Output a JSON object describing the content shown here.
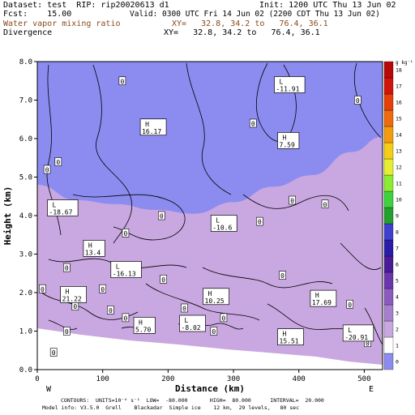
{
  "header": {
    "dataset": "Dataset: test  RIP: rip20020613 d1",
    "init": "Init: 1200 UTC Thu 13 Jun 02",
    "fcst": "Fcst:    15.00",
    "valid": "Valid: 0300 UTC Fri 14 Jun 02 (2200 CDT Thu 13 Jun 02)",
    "field1": "Water vapor mixing ratio",
    "xy1": "XY=   32.8, 34.2 to   76.4, 36.1",
    "field2": "Divergence",
    "xy2": "XY=   32.8, 34.2 to   76.4, 36.1"
  },
  "footer": {
    "line1": "CONTOURS:  UNITS=10⁻⁶ s⁻¹  LOW=  -80.000       HIGH=  80.000      INTERVAL=  20.000",
    "line2": "Model info: V3.5.0  Grell    Blackadar  Simple ice    12 km,  29 levels,   80 sec"
  },
  "colors": {
    "levels": [
      "#ffffff",
      "#c9a7e0",
      "#a77fce",
      "#8b5bbf",
      "#6b35ae",
      "#4a1b96",
      "#2a1ca8",
      "#3f3fd0",
      "#23a02e",
      "#3fd23f",
      "#8cec2e",
      "#e6ef2f",
      "#f6cd16",
      "#f59b0e",
      "#ee6a0c",
      "#e63f0a",
      "#d3140a",
      "#b8080a"
    ],
    "missing": "#8c8cf0"
  },
  "chart_data": {
    "type": "heatmap",
    "xlabel": "Distance (km)",
    "ylabel": "Height (km)",
    "xlim": [
      0,
      528
    ],
    "ylim": [
      0,
      8
    ],
    "x_ticks": [
      "0",
      "100",
      "200",
      "300",
      "400",
      "500"
    ],
    "y_ticks": [
      "0.0",
      "1.0",
      "2.0",
      "3.0",
      "4.0",
      "5.0",
      "6.0",
      "7.0",
      "8.0"
    ],
    "x_end_labels": {
      "left": "W",
      "right": "E"
    },
    "colorbar": {
      "unit": "g kg⁻¹",
      "ticks": [
        "0",
        "1",
        "2",
        "3",
        "4",
        "5",
        "6",
        "7",
        "8",
        "9",
        "10",
        "11",
        "12",
        "13",
        "14",
        "15",
        "16",
        "17",
        "18"
      ]
    },
    "markers": [
      {
        "kind": "H",
        "value": "16.17",
        "x": 160,
        "y": 6.3
      },
      {
        "kind": "L",
        "value": "-11.91",
        "x": 365,
        "y": 7.4
      },
      {
        "kind": "H",
        "value": "7.59",
        "x": 370,
        "y": 5.95
      },
      {
        "kind": "L",
        "value": "-18.67",
        "x": 18,
        "y": 4.2
      },
      {
        "kind": "L",
        "value": "-10.6",
        "x": 268,
        "y": 3.8
      },
      {
        "kind": "H",
        "value": "13.4",
        "x": 73,
        "y": 3.15
      },
      {
        "kind": "L",
        "value": "-16.13",
        "x": 115,
        "y": 2.6
      },
      {
        "kind": "H",
        "value": "21.22",
        "x": 38,
        "y": 1.95
      },
      {
        "kind": "H",
        "value": "10.25",
        "x": 256,
        "y": 1.9
      },
      {
        "kind": "H",
        "value": "17.69",
        "x": 420,
        "y": 1.85
      },
      {
        "kind": "H",
        "value": "5.70",
        "x": 150,
        "y": 1.15
      },
      {
        "kind": "L",
        "value": "-8.02",
        "x": 220,
        "y": 1.2
      },
      {
        "kind": "H",
        "value": "15.51",
        "x": 370,
        "y": 0.85
      },
      {
        "kind": "L",
        "value": "-20.91",
        "x": 470,
        "y": 0.95
      }
    ],
    "zero_labels": [
      {
        "text": "0",
        "x": 130,
        "y": 7.5
      },
      {
        "text": "0",
        "x": 490,
        "y": 7.0
      },
      {
        "text": "0",
        "x": 330,
        "y": 6.4
      },
      {
        "text": "0",
        "x": 15,
        "y": 5.2
      },
      {
        "text": "0",
        "x": 32,
        "y": 5.4
      },
      {
        "text": "0",
        "x": 390,
        "y": 4.4
      },
      {
        "text": "0",
        "x": 440,
        "y": 4.3
      },
      {
        "text": "0",
        "x": 190,
        "y": 4.0
      },
      {
        "text": "0",
        "x": 340,
        "y": 3.85
      },
      {
        "text": "0",
        "x": 135,
        "y": 3.55
      },
      {
        "text": "0",
        "x": 45,
        "y": 2.65
      },
      {
        "text": "0",
        "x": 8,
        "y": 2.1
      },
      {
        "text": "0",
        "x": 100,
        "y": 2.1
      },
      {
        "text": "0",
        "x": 193,
        "y": 2.35
      },
      {
        "text": "0",
        "x": 375,
        "y": 2.45
      },
      {
        "text": "0",
        "x": 285,
        "y": 1.35
      },
      {
        "text": "0",
        "x": 112,
        "y": 1.55
      },
      {
        "text": "0",
        "x": 225,
        "y": 1.6
      },
      {
        "text": "0",
        "x": 58,
        "y": 1.65
      },
      {
        "text": "0",
        "x": 135,
        "y": 1.35
      },
      {
        "text": "0",
        "x": 270,
        "y": 1.0
      },
      {
        "text": "0",
        "x": 45,
        "y": 1.0
      },
      {
        "text": "0",
        "x": 505,
        "y": 0.7
      },
      {
        "text": "0",
        "x": 478,
        "y": 1.7
      },
      {
        "text": "0",
        "x": 25,
        "y": 0.45
      }
    ]
  }
}
